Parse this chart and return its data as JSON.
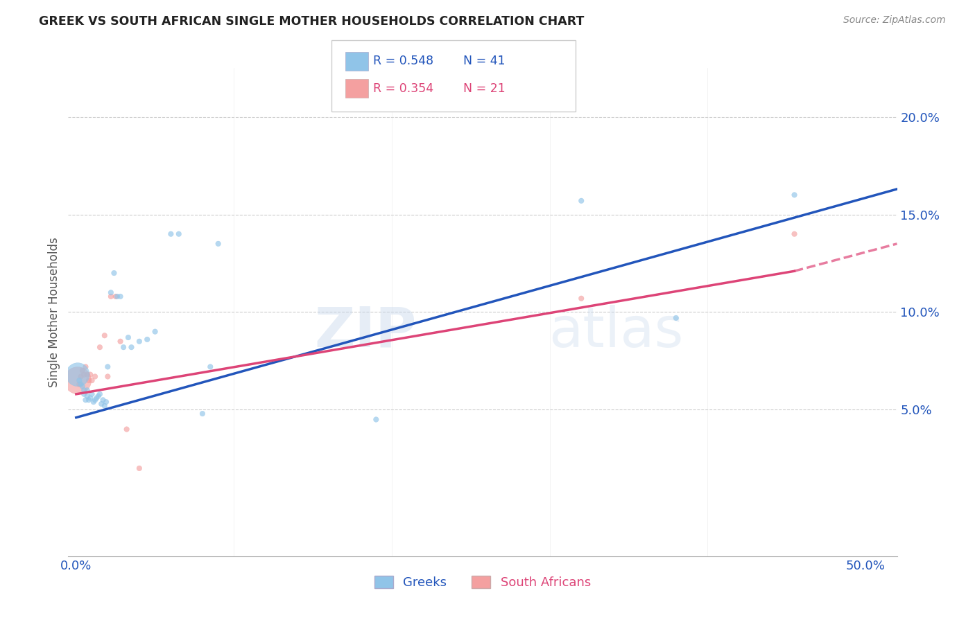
{
  "title": "GREEK VS SOUTH AFRICAN SINGLE MOTHER HOUSEHOLDS CORRELATION CHART",
  "source": "Source: ZipAtlas.com",
  "ylabel": "Single Mother Households",
  "x_ticks": [
    0.0,
    0.1,
    0.2,
    0.3,
    0.4,
    0.5
  ],
  "x_tick_labels": [
    "0.0%",
    "",
    "",
    "",
    "",
    "50.0%"
  ],
  "y_ticks": [
    0.05,
    0.1,
    0.15,
    0.2
  ],
  "y_tick_labels": [
    "5.0%",
    "10.0%",
    "15.0%",
    "20.0%"
  ],
  "xlim": [
    -0.005,
    0.52
  ],
  "ylim": [
    -0.025,
    0.225
  ],
  "blue_color": "#90c4e8",
  "pink_color": "#f4a0a0",
  "blue_line_color": "#2255bb",
  "pink_line_color": "#dd4477",
  "greeks_x": [
    0.001,
    0.002,
    0.003,
    0.004,
    0.005,
    0.005,
    0.006,
    0.007,
    0.007,
    0.008,
    0.009,
    0.01,
    0.011,
    0.012,
    0.013,
    0.014,
    0.015,
    0.016,
    0.017,
    0.018,
    0.019,
    0.02,
    0.022,
    0.024,
    0.026,
    0.028,
    0.03,
    0.033,
    0.035,
    0.04,
    0.045,
    0.05,
    0.06,
    0.065,
    0.08,
    0.085,
    0.09,
    0.19,
    0.32,
    0.38,
    0.455
  ],
  "greeks_y": [
    0.068,
    0.065,
    0.063,
    0.062,
    0.058,
    0.06,
    0.055,
    0.057,
    0.06,
    0.055,
    0.056,
    0.058,
    0.054,
    0.055,
    0.056,
    0.057,
    0.058,
    0.053,
    0.055,
    0.052,
    0.054,
    0.072,
    0.11,
    0.12,
    0.108,
    0.108,
    0.082,
    0.087,
    0.082,
    0.085,
    0.086,
    0.09,
    0.14,
    0.14,
    0.048,
    0.072,
    0.135,
    0.045,
    0.157,
    0.097,
    0.16
  ],
  "greeks_size": [
    600,
    30,
    30,
    30,
    30,
    30,
    30,
    30,
    30,
    30,
    30,
    30,
    30,
    30,
    30,
    30,
    30,
    30,
    30,
    30,
    30,
    30,
    30,
    30,
    30,
    30,
    30,
    30,
    30,
    30,
    30,
    30,
    30,
    30,
    30,
    30,
    30,
    30,
    30,
    30,
    30
  ],
  "sa_x": [
    0.001,
    0.002,
    0.003,
    0.004,
    0.005,
    0.006,
    0.007,
    0.008,
    0.009,
    0.01,
    0.012,
    0.015,
    0.018,
    0.02,
    0.022,
    0.025,
    0.028,
    0.032,
    0.04,
    0.32,
    0.455
  ],
  "sa_y": [
    0.065,
    0.063,
    0.067,
    0.07,
    0.068,
    0.072,
    0.068,
    0.065,
    0.068,
    0.065,
    0.067,
    0.082,
    0.088,
    0.067,
    0.108,
    0.108,
    0.085,
    0.04,
    0.02,
    0.107,
    0.14
  ],
  "sa_size": [
    800,
    30,
    30,
    30,
    30,
    30,
    30,
    30,
    30,
    30,
    30,
    30,
    30,
    30,
    30,
    30,
    30,
    30,
    30,
    30,
    30
  ],
  "blue_trendline": [
    0.0,
    0.52,
    0.046,
    0.163
  ],
  "pink_trendline_solid": [
    0.0,
    0.455,
    0.058,
    0.121
  ],
  "pink_trendline_dash": [
    0.455,
    0.52,
    0.121,
    0.135
  ]
}
